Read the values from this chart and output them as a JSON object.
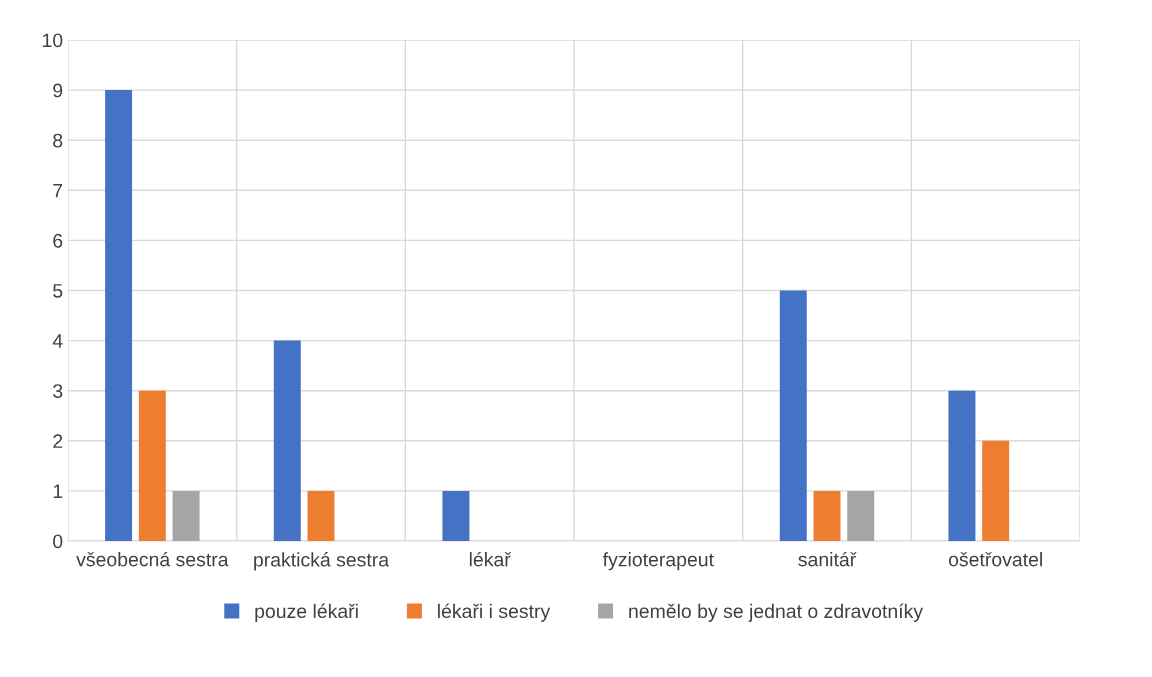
{
  "chart_data": {
    "type": "bar",
    "categories": [
      "všeobecná sestra",
      "praktická sestra",
      "lékař",
      "fyzioterapeut",
      "sanitář",
      "ošetřovatel"
    ],
    "series": [
      {
        "name": "pouze lékaři",
        "color": "#4472c4",
        "values": [
          9,
          4,
          1,
          0,
          5,
          3
        ]
      },
      {
        "name": "lékaři i sestry",
        "color": "#ed7d31",
        "values": [
          3,
          1,
          0,
          0,
          1,
          2
        ]
      },
      {
        "name": "nemělo by se jednat o zdravotníky",
        "color": "#a5a5a5",
        "values": [
          1,
          0,
          0,
          0,
          1,
          0
        ]
      }
    ],
    "ylim": [
      0,
      10
    ],
    "yticks": [
      0,
      1,
      2,
      3,
      4,
      5,
      6,
      7,
      8,
      9,
      10
    ],
    "grid": true,
    "legend": "bottom"
  }
}
